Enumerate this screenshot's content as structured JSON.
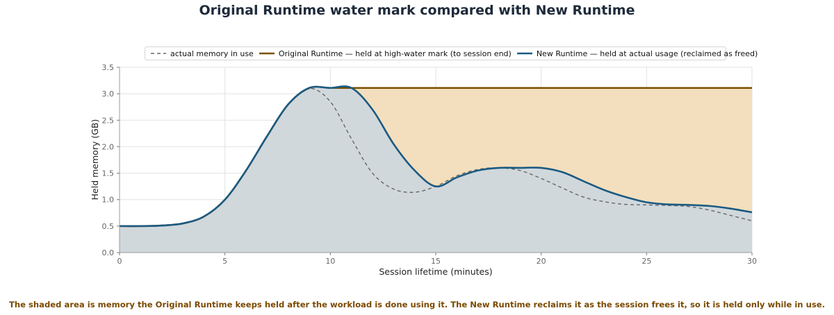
{
  "chart_data": {
    "type": "area",
    "title": "Original Runtime water mark compared with New Runtime",
    "xlabel": "Session lifetime (minutes)",
    "ylabel": "Held memory (GB)",
    "xlim": [
      0,
      30
    ],
    "ylim": [
      0,
      3.5
    ],
    "xticks": [
      "0",
      "5",
      "10",
      "15",
      "20",
      "25",
      "30"
    ],
    "yticks": [
      "0.0",
      "0.5",
      "1.0",
      "1.5",
      "2.0",
      "2.5",
      "3.0",
      "3.5"
    ],
    "grid": true,
    "legend_position": "top",
    "series": [
      {
        "name": "actual memory in use",
        "style": "dashed",
        "color": "#666666",
        "x": [
          0,
          1,
          2,
          3,
          4,
          5,
          6,
          7,
          8,
          9,
          10,
          11,
          12,
          13,
          14,
          15,
          16,
          17,
          18,
          19,
          20,
          21,
          22,
          23,
          24,
          25,
          26,
          27,
          28,
          29,
          30
        ],
        "y": [
          0.5,
          0.5,
          0.51,
          0.55,
          0.68,
          1.0,
          1.55,
          2.2,
          2.8,
          3.1,
          2.85,
          2.15,
          1.5,
          1.2,
          1.14,
          1.25,
          1.45,
          1.57,
          1.6,
          1.55,
          1.4,
          1.22,
          1.05,
          0.96,
          0.91,
          0.9,
          0.89,
          0.87,
          0.8,
          0.7,
          0.6
        ]
      },
      {
        "name": "Original Runtime — held at high-water mark (to session end)",
        "style": "solid",
        "color": "#7a4f00",
        "x": [
          0,
          1,
          2,
          3,
          4,
          5,
          6,
          7,
          8,
          9,
          10,
          11,
          12,
          13,
          14,
          15,
          16,
          17,
          18,
          19,
          20,
          21,
          22,
          23,
          24,
          25,
          26,
          27,
          28,
          29,
          30
        ],
        "y": [
          0.5,
          0.5,
          0.51,
          0.55,
          0.68,
          1.0,
          1.55,
          2.2,
          2.8,
          3.11,
          3.11,
          3.11,
          3.11,
          3.11,
          3.11,
          3.11,
          3.11,
          3.11,
          3.11,
          3.11,
          3.11,
          3.11,
          3.11,
          3.11,
          3.11,
          3.11,
          3.11,
          3.11,
          3.11,
          3.11,
          3.11
        ]
      },
      {
        "name": "New Runtime — held at actual usage (reclaimed as freed)",
        "style": "solid",
        "color": "#1b5a82",
        "x": [
          0,
          1,
          2,
          3,
          4,
          5,
          6,
          7,
          8,
          9,
          10,
          11,
          12,
          13,
          14,
          15,
          16,
          17,
          18,
          19,
          20,
          21,
          22,
          23,
          24,
          25,
          26,
          27,
          28,
          29,
          30
        ],
        "y": [
          0.5,
          0.5,
          0.51,
          0.55,
          0.68,
          1.0,
          1.55,
          2.2,
          2.8,
          3.11,
          3.11,
          3.11,
          2.7,
          2.05,
          1.55,
          1.25,
          1.42,
          1.55,
          1.6,
          1.6,
          1.6,
          1.52,
          1.35,
          1.18,
          1.05,
          0.95,
          0.91,
          0.9,
          0.88,
          0.83,
          0.76
        ]
      }
    ],
    "fills": {
      "held_area_color": "#f3dfbd",
      "used_area_color": "#d0d8dc"
    },
    "annotation": "The shaded area is memory the Original Runtime keeps held after the workload is done using it. The New Runtime reclaims it as the session frees it, so it is held only while in use."
  }
}
